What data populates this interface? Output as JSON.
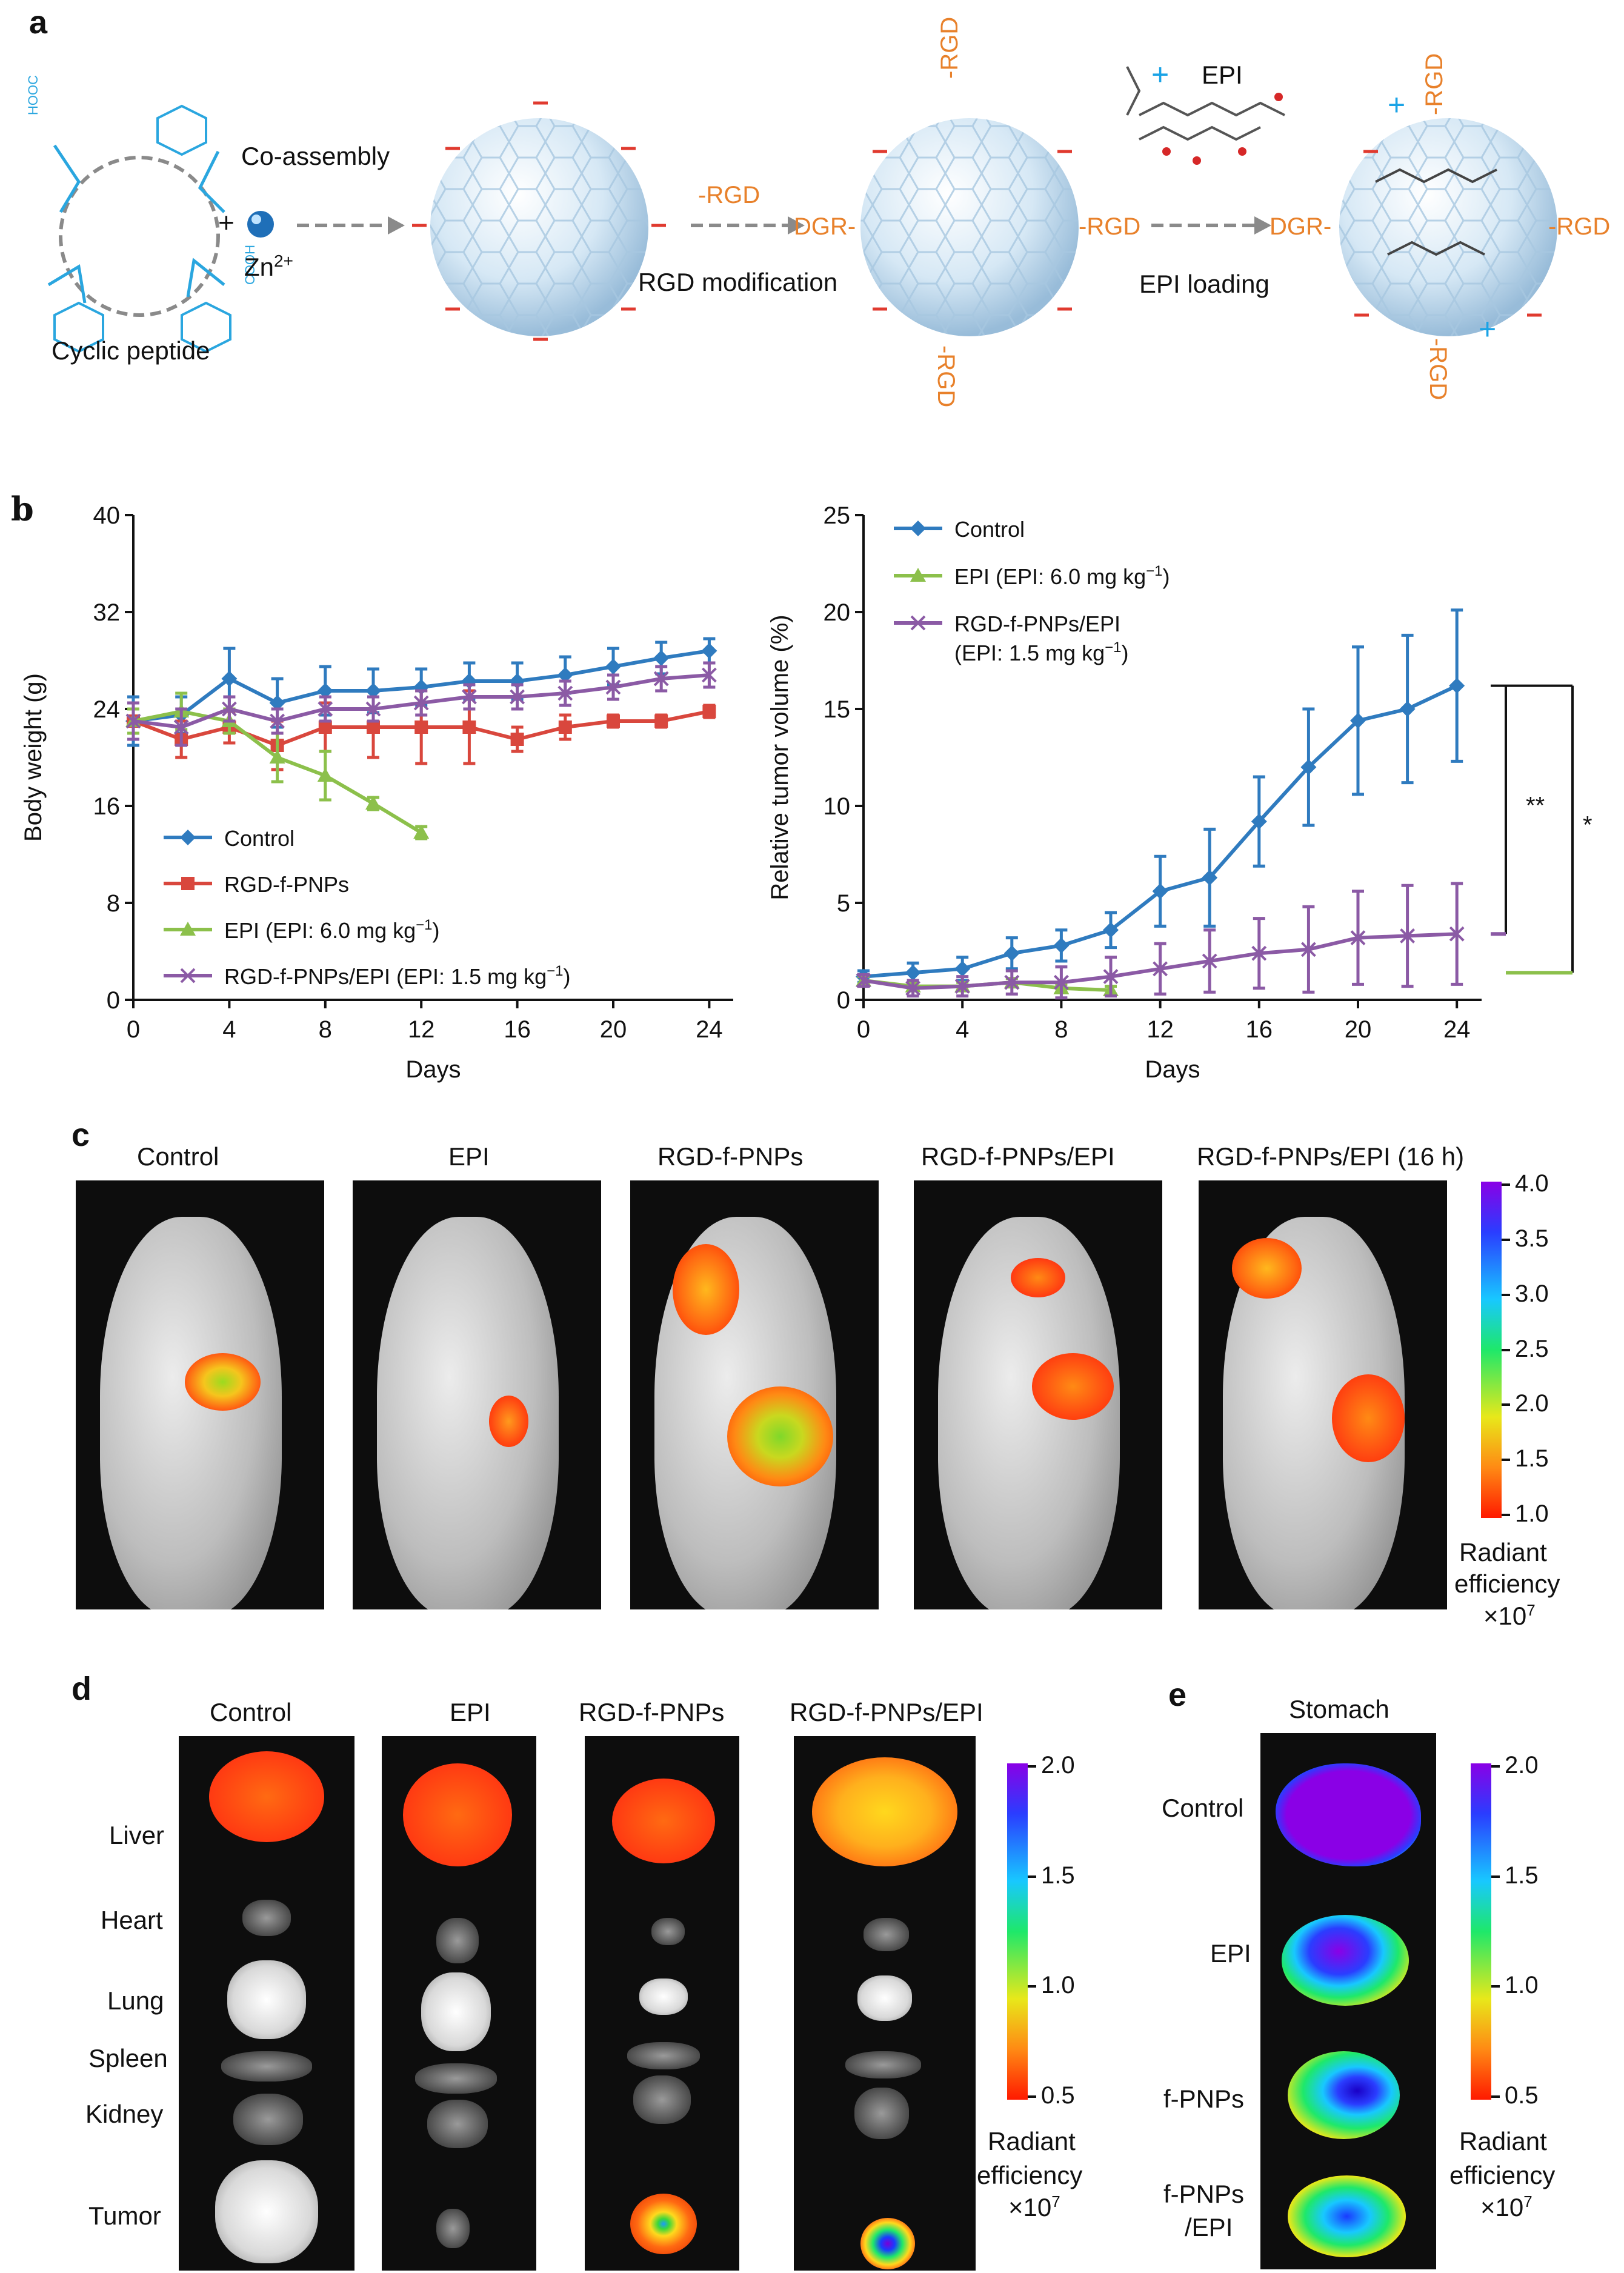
{
  "panel_letters": {
    "a": "a",
    "b": "b",
    "c": "c",
    "d": "d",
    "e": "e"
  },
  "panel_a": {
    "cyclic_peptide": "Cyclic peptide",
    "plus": "+",
    "co_assembly": "Co-assembly",
    "zn": "Zn",
    "zn_sup": "2+",
    "rgd_modification": "RGD modification",
    "epi_loading": "EPI loading",
    "rgd_arrow": "-RGD",
    "rgd_right_1": "-RGD",
    "rgd_right_2": "-RGD",
    "dgr_left_1": "DGR-",
    "dgr_left_2": "DGR-",
    "rgd_top_1": "-RGD",
    "rgd_bottom_1": "-RGD",
    "rgd_top_2": "-RGD",
    "rgd_bottom_2": "-RGD",
    "epi": "EPI",
    "cooh": "COOH",
    "hooc": "HOOC"
  },
  "chart_data": [
    {
      "type": "line",
      "title": "",
      "xlabel": "Days",
      "ylabel": "Body weight (g)",
      "xlim": [
        0,
        25
      ],
      "ylim": [
        0,
        40
      ],
      "xticks": [
        "0",
        "4",
        "8",
        "12",
        "16",
        "20",
        "24"
      ],
      "yticks": [
        "0",
        "8",
        "16",
        "24",
        "32",
        "40"
      ],
      "series": [
        {
          "name": "Control",
          "color": "#2f7bbf",
          "marker": "diamond",
          "x": [
            0,
            2,
            4,
            6,
            8,
            10,
            12,
            14,
            16,
            18,
            20,
            22,
            24
          ],
          "y": [
            23,
            23.5,
            26.5,
            24.5,
            25.5,
            25.5,
            25.8,
            26.3,
            26.3,
            26.8,
            27.5,
            28.2,
            28.8
          ],
          "err": [
            2,
            1.5,
            2.5,
            2,
            2,
            1.8,
            1.5,
            1.5,
            1.5,
            1.5,
            1.5,
            1.3,
            1
          ]
        },
        {
          "name": "RGD-f-PNPs",
          "color": "#d9473d",
          "marker": "square",
          "x": [
            0,
            2,
            4,
            6,
            8,
            10,
            12,
            14,
            16,
            18,
            20,
            22,
            24
          ],
          "y": [
            23,
            21.5,
            22.5,
            21,
            22.5,
            22.5,
            22.5,
            22.5,
            21.5,
            22.5,
            23,
            23,
            23.8
          ],
          "err": [
            1.5,
            1.5,
            1.3,
            2,
            2,
            2.5,
            3,
            3,
            1,
            1,
            0.5,
            0.5,
            0.5
          ]
        },
        {
          "name": "EPI (EPI: 6.0 mg kg⁻¹)",
          "color": "#8cc04b",
          "marker": "triangle",
          "x": [
            0,
            2,
            4,
            6,
            8,
            10,
            12
          ],
          "y": [
            23,
            23.8,
            23,
            20,
            18.5,
            16.2,
            13.8
          ],
          "err": [
            1,
            1.5,
            1,
            2,
            2,
            0.5,
            0.5
          ]
        },
        {
          "name": "RGD-f-PNPs/EPI (EPI: 1.5 mg kg⁻¹)",
          "color": "#8b5aa5",
          "marker": "x",
          "x": [
            0,
            2,
            4,
            6,
            8,
            10,
            12,
            14,
            16,
            18,
            20,
            22,
            24
          ],
          "y": [
            23,
            22.5,
            24,
            23,
            24,
            24,
            24.5,
            25,
            25,
            25.3,
            25.8,
            26.5,
            26.8
          ],
          "err": [
            1.5,
            1.5,
            1,
            1,
            1,
            1,
            1,
            1,
            1,
            1,
            1,
            1,
            1
          ]
        }
      ],
      "legend": "bottom-left"
    },
    {
      "type": "line",
      "title": "",
      "xlabel": "Days",
      "ylabel": "Relative tumor volume (%)",
      "xlim": [
        0,
        25
      ],
      "ylim": [
        0,
        25
      ],
      "xticks": [
        "0",
        "4",
        "8",
        "12",
        "16",
        "20",
        "24"
      ],
      "yticks": [
        "0",
        "5",
        "10",
        "15",
        "20",
        "25"
      ],
      "series": [
        {
          "name": "Control",
          "color": "#2f7bbf",
          "marker": "diamond",
          "x": [
            0,
            2,
            4,
            6,
            8,
            10,
            12,
            14,
            16,
            18,
            20,
            22,
            24
          ],
          "y": [
            1.2,
            1.4,
            1.6,
            2.4,
            2.8,
            3.6,
            5.6,
            6.3,
            9.2,
            12,
            14.4,
            15,
            16.2
          ],
          "err": [
            0.3,
            0.5,
            0.6,
            0.8,
            0.8,
            0.9,
            1.8,
            2.5,
            2.3,
            3,
            3.8,
            3.8,
            3.9
          ]
        },
        {
          "name": "EPI (EPI: 6.0 mg kg⁻¹)",
          "color": "#8cc04b",
          "marker": "triangle",
          "x": [
            0,
            2,
            4,
            6,
            8,
            10
          ],
          "y": [
            1,
            0.7,
            0.7,
            0.9,
            0.6,
            0.5
          ],
          "err": [
            0.2,
            0.2,
            0.2,
            0.2,
            0.2,
            0.2
          ]
        },
        {
          "name": "RGD-f-PNPs/EPI\n(EPI: 1.5 mg kg⁻¹)",
          "color": "#8b5aa5",
          "marker": "x",
          "x": [
            0,
            2,
            4,
            6,
            8,
            10,
            12,
            14,
            16,
            18,
            20,
            22,
            24
          ],
          "y": [
            1,
            0.6,
            0.7,
            0.9,
            0.9,
            1.2,
            1.6,
            2,
            2.4,
            2.6,
            3.2,
            3.3,
            3.4
          ],
          "err": [
            0.3,
            0.4,
            0.5,
            0.6,
            0.8,
            1,
            1.3,
            1.6,
            1.8,
            2.2,
            2.4,
            2.6,
            2.6
          ]
        }
      ],
      "significance": [
        "**",
        "*"
      ],
      "legend": "top-left"
    }
  ],
  "panel_c": {
    "labels": [
      "Control",
      "EPI",
      "RGD-f-PNPs",
      "RGD-f-PNPs/EPI",
      "RGD-f-PNPs/EPI (16 h)"
    ],
    "colorbar_ticks": [
      "4.0",
      "3.5",
      "3.0",
      "2.5",
      "2.0",
      "1.5",
      "1.0"
    ],
    "colorbar_title": [
      "Radiant",
      "efficiency"
    ],
    "colorbar_unit": "×10",
    "colorbar_exp": "7"
  },
  "panel_d": {
    "columns": [
      "Control",
      "EPI",
      "RGD-f-PNPs",
      "RGD-f-PNPs/EPI"
    ],
    "organs": [
      "Liver",
      "Heart",
      "Lung",
      "Spleen",
      "Kidney",
      "Tumor"
    ],
    "colorbar_ticks": [
      "2.0",
      "1.5",
      "1.0",
      "0.5"
    ],
    "colorbar_title": [
      "Radiant",
      "efficiency"
    ],
    "colorbar_unit": "×10",
    "colorbar_exp": "7"
  },
  "panel_e": {
    "title": "Stomach",
    "rows": [
      "Control",
      "EPI",
      "f-PNPs",
      "f-PNPs",
      "/EPI"
    ],
    "colorbar_ticks": [
      "2.0",
      "1.5",
      "1.0",
      "0.5"
    ],
    "colorbar_title": [
      "Radiant",
      "efficiency"
    ],
    "colorbar_unit": "×10",
    "colorbar_exp": "7"
  }
}
